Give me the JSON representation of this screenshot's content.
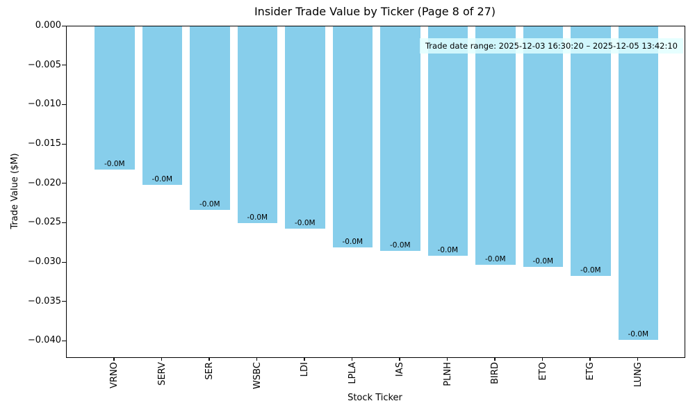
{
  "chart_data": {
    "type": "bar",
    "title": "Insider Trade Value by Ticker (Page 8 of 27)",
    "xlabel": "Stock Ticker",
    "ylabel": "Trade Value ($M)",
    "categories": [
      "VRNO",
      "SERV",
      "SER",
      "WSBC",
      "LDI",
      "LPLA",
      "IAS",
      "PLNH",
      "BIRD",
      "ETO",
      "ETG",
      "LUNG"
    ],
    "values": [
      -0.0182,
      -0.0201,
      -0.0233,
      -0.025,
      -0.0257,
      -0.0281,
      -0.0285,
      -0.0291,
      -0.0303,
      -0.0305,
      -0.0317,
      -0.0398
    ],
    "bar_value_labels": [
      "-0.0M",
      "-0.0M",
      "-0.0M",
      "-0.0M",
      "-0.0M",
      "-0.0M",
      "-0.0M",
      "-0.0M",
      "-0.0M",
      "-0.0M",
      "-0.0M",
      "-0.0M"
    ],
    "yticks": [
      0,
      -0.005,
      -0.01,
      -0.015,
      -0.02,
      -0.025,
      -0.03,
      -0.035,
      -0.04
    ],
    "ytick_labels": [
      "0.000",
      "−0.005",
      "−0.010",
      "−0.015",
      "−0.020",
      "−0.025",
      "−0.030",
      "−0.035",
      "−0.040"
    ],
    "ylim": [
      -0.042,
      0
    ],
    "grid": false,
    "legend": null,
    "bar_color": "#87CEEB",
    "annotation": {
      "text": "Trade date range: 2025-12-03 16:30:20 – 2025-12-05 13:42:10",
      "bg_color": "#E0FFFF"
    }
  }
}
